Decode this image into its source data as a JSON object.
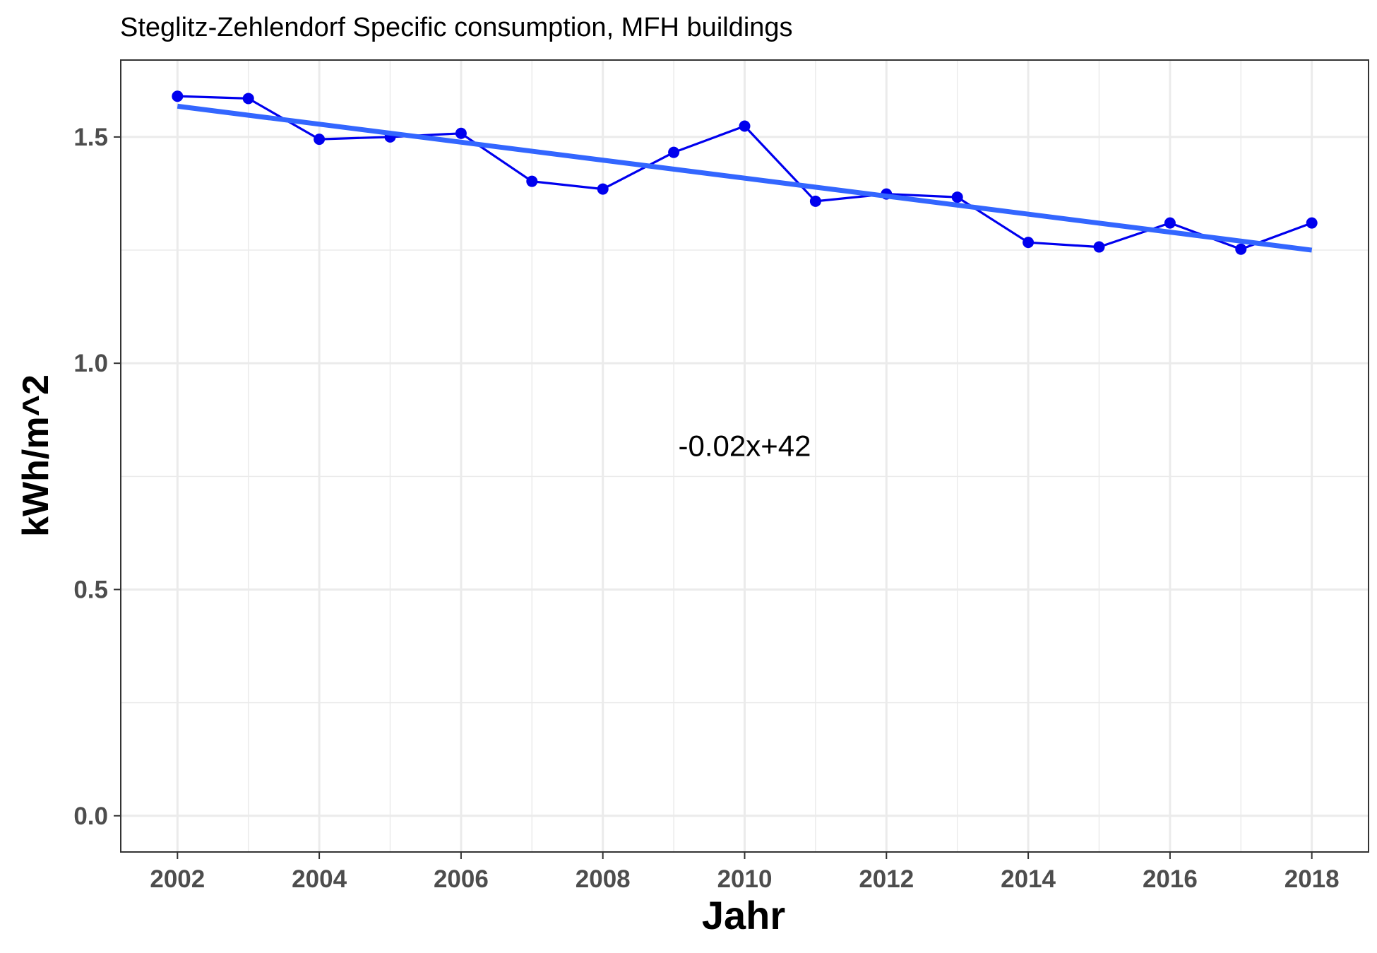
{
  "chart_data": {
    "type": "line",
    "title": "Steglitz-Zehlendorf Specific consumption, MFH buildings",
    "xlabel": "Jahr",
    "ylabel": "kWh/m^2",
    "xlim": [
      2001.2,
      2018.8
    ],
    "ylim": [
      -0.08,
      1.67
    ],
    "x_ticks": [
      2002,
      2004,
      2006,
      2008,
      2010,
      2012,
      2014,
      2016,
      2018
    ],
    "x_tick_labels": [
      "2002",
      "2004",
      "2006",
      "2008",
      "2010",
      "2012",
      "2014",
      "2016",
      "2018"
    ],
    "y_ticks": [
      0.0,
      0.5,
      1.0,
      1.5
    ],
    "y_tick_labels": [
      "0.0",
      "0.5",
      "1.0",
      "1.5"
    ],
    "grid": true,
    "series": [
      {
        "x": [
          2002,
          2003,
          2004,
          2005,
          2006,
          2007,
          2008,
          2009,
          2010,
          2011,
          2012,
          2013,
          2014,
          2015,
          2016,
          2017,
          2018
        ],
        "y": [
          1.59,
          1.585,
          1.495,
          1.5,
          1.508,
          1.402,
          1.385,
          1.466,
          1.524,
          1.358,
          1.374,
          1.367,
          1.267,
          1.257,
          1.31,
          1.252,
          1.31
        ],
        "color": "#0000ee"
      }
    ],
    "trend_line": {
      "color": "#3366ff",
      "x": [
        2002,
        2018
      ],
      "y": [
        1.568,
        1.25
      ]
    },
    "annotation": {
      "text": "-0.02x+42",
      "x": 2010,
      "y": 0.795
    }
  }
}
